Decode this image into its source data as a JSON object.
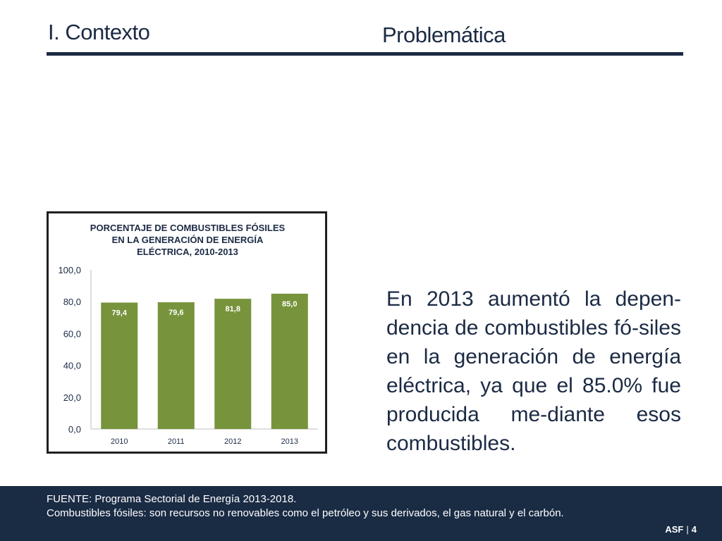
{
  "header": {
    "section": "I. Contexto",
    "topic": "Problemática"
  },
  "body_text": "En 2013 aumentó la depen-dencia de combustibles fó-siles en la generación de energía eléctrica, ya que el 85.0% fue producida me-diante esos combustibles.",
  "footer": {
    "source": "FUENTE: Programa Sectorial de Energía 2013-2018.",
    "definition": "Combustibles fósiles: son recursos no renovables como el petróleo y sus derivados, el gas natural y el carbón.",
    "brand": "ASF",
    "separator": "|",
    "page": "4"
  },
  "colors": {
    "bar": "#77933c",
    "navy": "#1a2b44"
  },
  "chart_data": {
    "type": "bar",
    "title": [
      "PORCENTAJE DE COMBUSTIBLES FÓSILES",
      "EN LA GENERACIÓN DE ENERGÍA",
      "ELÉCTRICA, 2010-2013"
    ],
    "categories": [
      "2010",
      "2011",
      "2012",
      "2013"
    ],
    "values": [
      79.4,
      79.6,
      81.8,
      85.0
    ],
    "data_labels": [
      "79,4",
      "79,6",
      "81,8",
      "85,0"
    ],
    "yticks": [
      "0,0",
      "20,0",
      "40,0",
      "60,0",
      "80,0",
      "100,0"
    ],
    "ylim": [
      0,
      100
    ],
    "grid": false,
    "legend": "none"
  }
}
